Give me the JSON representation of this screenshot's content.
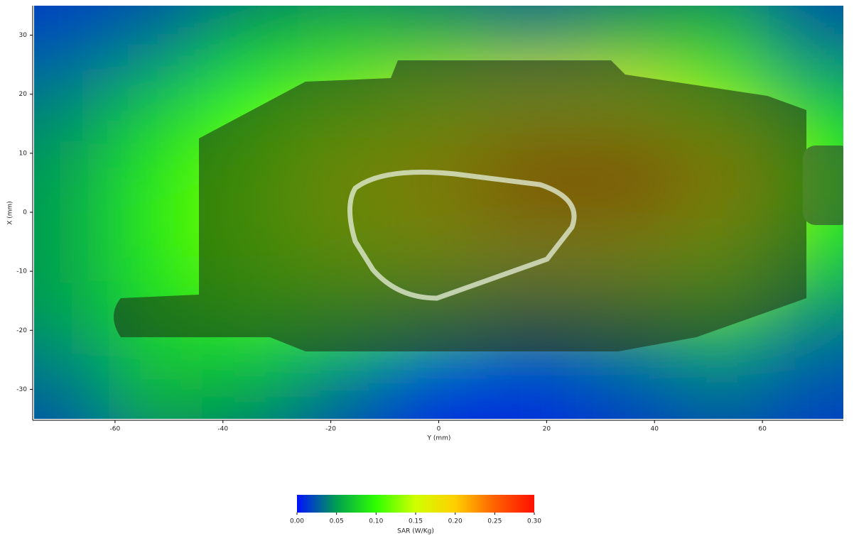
{
  "chart_data": {
    "type": "heatmap",
    "x_label": "Y (mm)",
    "y_label": "X (mm)",
    "xlim": [
      -75,
      75
    ],
    "ylim": [
      -35,
      35
    ],
    "xticks": [
      -60,
      -40,
      -20,
      0,
      20,
      40,
      60
    ],
    "yticks": [
      30,
      20,
      10,
      0,
      -10,
      -20,
      -30
    ],
    "x": [
      -70,
      -52.5,
      -35,
      -17.5,
      0,
      17.5,
      35,
      52.5,
      70
    ],
    "y": [
      30,
      18,
      6,
      -6,
      -18,
      -30
    ],
    "z": [
      [
        0.02,
        0.03,
        0.05,
        0.06,
        0.05,
        0.04,
        0.05,
        0.06,
        0.03
      ],
      [
        0.04,
        0.07,
        0.1,
        0.12,
        0.14,
        0.16,
        0.15,
        0.12,
        0.07
      ],
      [
        0.05,
        0.09,
        0.12,
        0.16,
        0.2,
        0.25,
        0.26,
        0.2,
        0.1
      ],
      [
        0.05,
        0.09,
        0.12,
        0.14,
        0.16,
        0.18,
        0.17,
        0.14,
        0.08
      ],
      [
        0.05,
        0.08,
        0.09,
        0.08,
        0.06,
        0.04,
        0.05,
        0.07,
        0.04
      ],
      [
        0.03,
        0.06,
        0.05,
        0.03,
        0.01,
        0.01,
        0.02,
        0.03,
        0.02
      ]
    ],
    "colormap": [
      "#0010ff",
      "#00a050",
      "#30ff00",
      "#d0ff00",
      "#ffd000",
      "#ff6000",
      "#ff1000"
    ],
    "colorbar": {
      "label": "SAR (W/Kg)",
      "lim": [
        0,
        0.3
      ],
      "ticks": [
        {
          "value": 0,
          "label": "0.00"
        },
        {
          "value": 0.05,
          "label": "0.05"
        },
        {
          "value": 0.1,
          "label": "0.10"
        },
        {
          "value": 0.15,
          "label": "0.15"
        },
        {
          "value": 0.2,
          "label": "0.20"
        },
        {
          "value": 0.25,
          "label": "0.25"
        },
        {
          "value": 0.3,
          "label": "0.30"
        }
      ]
    }
  }
}
